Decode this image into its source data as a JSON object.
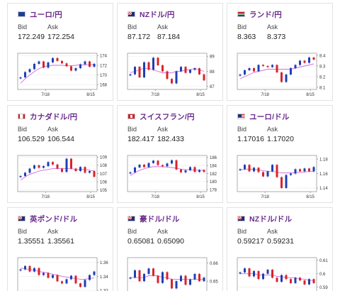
{
  "cards": [
    {
      "pair": "ユーロ/円",
      "flag": "eu",
      "bid_label": "Bid",
      "ask_label": "Ask",
      "bid": "172.249",
      "ask": "172.254",
      "chart_data": {
        "type": "line",
        "x_labels": [
          "7/18",
          "8/15"
        ],
        "y_ticks": [
          168,
          170,
          172,
          174
        ],
        "ylim": [
          167,
          174.5
        ],
        "series": [
          {
            "values": [
              169.5,
              170.6,
              171.2,
              172.3,
              172.8,
              171.5,
              172.6,
              173.5,
              172.9,
              172.4,
              171.8,
              170.9,
              171.4,
              172.2,
              172.8,
              171.7,
              172.3
            ]
          }
        ],
        "ma": [
          168.3,
          169.2,
          170.0,
          170.7,
          171.3,
          171.7,
          171.9,
          172.0,
          172.0,
          172.0,
          171.9,
          171.9,
          172.0,
          172.1,
          172.1,
          172.1,
          172.2
        ]
      }
    },
    {
      "pair": "NZドル/円",
      "flag": "nz",
      "bid_label": "Bid",
      "ask_label": "Ask",
      "bid": "87.172",
      "ask": "87.184",
      "chart_data": {
        "type": "line",
        "x_labels": [
          "7/18",
          "8/15"
        ],
        "y_ticks": [
          87,
          88,
          89
        ],
        "ylim": [
          86.8,
          89.2
        ],
        "series": [
          {
            "values": [
              87.8,
              88.3,
              87.6,
              88.6,
              88.1,
              88.9,
              88.4,
              88.0,
              87.5,
              87.2,
              88.0,
              88.3,
              87.9,
              88.1,
              88.2,
              87.8,
              87.4
            ]
          }
        ],
        "ma": [
          87.9,
          88.0,
          88.1,
          88.2,
          88.2,
          88.1,
          88.0,
          87.9,
          87.9,
          87.9,
          88.0,
          88.0,
          88.1,
          88.1,
          88.2,
          88.1,
          88.0
        ]
      }
    },
    {
      "pair": "ランド/円",
      "flag": "za",
      "bid_label": "Bid",
      "ask_label": "Ask",
      "bid": "8.363",
      "ask": "8.373",
      "chart_data": {
        "type": "line",
        "x_labels": [
          "7/18",
          "8/15"
        ],
        "y_ticks": [
          8.1,
          8.2,
          8.3,
          8.4
        ],
        "ylim": [
          8.08,
          8.42
        ],
        "series": [
          {
            "values": [
              8.22,
              8.26,
              8.28,
              8.25,
              8.31,
              8.3,
              8.29,
              8.31,
              8.24,
              8.15,
              8.22,
              8.28,
              8.31,
              8.35,
              8.33,
              8.38,
              8.36
            ]
          }
        ],
        "ma": [
          8.18,
          8.2,
          8.22,
          8.24,
          8.25,
          8.26,
          8.27,
          8.27,
          8.27,
          8.27,
          8.27,
          8.27,
          8.28,
          8.29,
          8.3,
          8.31,
          8.32
        ]
      }
    },
    {
      "pair": "カナダドル/円",
      "flag": "ca",
      "bid_label": "Bid",
      "ask_label": "Ask",
      "bid": "106.529",
      "ask": "106.544",
      "chart_data": {
        "type": "line",
        "x_labels": [
          "7/18",
          "8/15"
        ],
        "y_ticks": [
          105,
          106,
          107,
          108,
          109
        ],
        "ylim": [
          104.8,
          109.2
        ],
        "series": [
          {
            "values": [
              106.7,
              107.1,
              107.6,
              108.0,
              107.7,
              107.9,
              108.4,
              108.1,
              107.6,
              107.2,
              108.8,
              107.6,
              107.3,
              107.8,
              107.1,
              107.3,
              106.6
            ]
          }
        ],
        "ma": [
          106.2,
          106.6,
          106.9,
          107.1,
          107.3,
          107.4,
          107.5,
          107.6,
          107.6,
          107.6,
          107.6,
          107.6,
          107.5,
          107.5,
          107.5,
          107.4,
          107.3
        ]
      }
    },
    {
      "pair": "スイスフラン/円",
      "flag": "ch",
      "bid_label": "Bid",
      "ask_label": "Ask",
      "bid": "182.417",
      "ask": "182.433",
      "chart_data": {
        "type": "line",
        "x_labels": [
          "7/18",
          "8/15"
        ],
        "y_ticks": [
          178,
          180,
          182,
          184,
          186
        ],
        "ylim": [
          177.5,
          186.5
        ],
        "series": [
          {
            "values": [
              182.3,
              183.5,
              184.2,
              183.6,
              184.6,
              185.2,
              184.1,
              183.8,
              184.5,
              185.3,
              183.0,
              182.3,
              182.8,
              183.6,
              182.4,
              182.9,
              182.4
            ]
          }
        ],
        "ma": [
          181.5,
          182.2,
          182.8,
          183.2,
          183.5,
          183.7,
          183.7,
          183.7,
          183.6,
          183.5,
          183.3,
          183.1,
          183.0,
          182.9,
          182.9,
          182.8,
          182.8
        ]
      }
    },
    {
      "pair": "ユーロ/ドル",
      "flag": "us",
      "bid_label": "Bid",
      "ask_label": "Ask",
      "bid": "1.17016",
      "ask": "1.17020",
      "chart_data": {
        "type": "line",
        "x_labels": [
          "7/18",
          "8/15"
        ],
        "y_ticks": [
          1.14,
          1.16,
          1.18
        ],
        "ylim": [
          1.135,
          1.185
        ],
        "series": [
          {
            "values": [
              1.166,
              1.172,
              1.163,
              1.168,
              1.162,
              1.156,
              1.163,
              1.172,
              1.155,
              1.14,
              1.158,
              1.16,
              1.166,
              1.163,
              1.167,
              1.163,
              1.169
            ]
          }
        ],
        "ma": [
          1.165,
          1.166,
          1.166,
          1.166,
          1.165,
          1.164,
          1.163,
          1.163,
          1.162,
          1.161,
          1.161,
          1.161,
          1.161,
          1.162,
          1.162,
          1.163,
          1.163
        ]
      }
    },
    {
      "pair": "英ポンド/ドル",
      "flag": "gb",
      "bid_label": "Bid",
      "ask_label": "Ask",
      "bid": "1.35551",
      "ask": "1.35561",
      "chart_data": {
        "type": "line",
        "x_labels": [],
        "y_ticks": [
          1.32,
          1.34,
          1.36
        ],
        "ylim": [
          1.315,
          1.367
        ],
        "series": [
          {
            "values": [
              1.35,
              1.355,
              1.347,
              1.352,
              1.342,
              1.345,
              1.338,
              1.342,
              1.333,
              1.33,
              1.336,
              1.341,
              1.33,
              1.325,
              1.335,
              1.342,
              1.347
            ]
          }
        ],
        "ma": [
          1.352,
          1.351,
          1.35,
          1.349,
          1.347,
          1.346,
          1.345,
          1.343,
          1.342,
          1.34,
          1.339,
          1.338,
          1.337,
          1.336,
          1.336,
          1.337,
          1.338
        ]
      }
    },
    {
      "pair": "豪ドル/ドル",
      "flag": "au",
      "bid_label": "Bid",
      "ask_label": "Ask",
      "bid": "0.65081",
      "ask": "0.65090",
      "chart_data": {
        "type": "line",
        "x_labels": [],
        "y_ticks": [
          0.65,
          0.66
        ],
        "ylim": [
          0.643,
          0.663
        ],
        "series": [
          {
            "values": [
              0.652,
              0.656,
              0.65,
              0.654,
              0.657,
              0.653,
              0.649,
              0.655,
              0.651,
              0.646,
              0.65,
              0.653,
              0.648,
              0.651,
              0.654,
              0.65,
              0.652
            ]
          }
        ],
        "ma": [
          0.652,
          0.652,
          0.652,
          0.652,
          0.653,
          0.653,
          0.653,
          0.652,
          0.652,
          0.651,
          0.651,
          0.651,
          0.651,
          0.651,
          0.651,
          0.651,
          0.651
        ]
      }
    },
    {
      "pair": "NZドル/ドル",
      "flag": "nz",
      "bid_label": "Bid",
      "ask_label": "Ask",
      "bid": "0.59217",
      "ask": "0.59231",
      "chart_data": {
        "type": "line",
        "x_labels": [],
        "y_ticks": [
          0.59,
          0.6,
          0.61
        ],
        "ylim": [
          0.585,
          0.612
        ],
        "series": [
          {
            "values": [
              0.601,
              0.604,
              0.598,
              0.602,
              0.596,
              0.6,
              0.603,
              0.597,
              0.594,
              0.599,
              0.596,
              0.593,
              0.597,
              0.595,
              0.592,
              0.596,
              0.593
            ]
          }
        ],
        "ma": [
          0.6,
          0.6,
          0.6,
          0.6,
          0.599,
          0.599,
          0.599,
          0.599,
          0.598,
          0.598,
          0.597,
          0.597,
          0.597,
          0.596,
          0.596,
          0.595,
          0.595
        ]
      }
    }
  ],
  "colors": {
    "up": "#1f3fb0",
    "down": "#d9232b",
    "ma": "#d36be0",
    "pair_text": "#6a2a8c"
  }
}
